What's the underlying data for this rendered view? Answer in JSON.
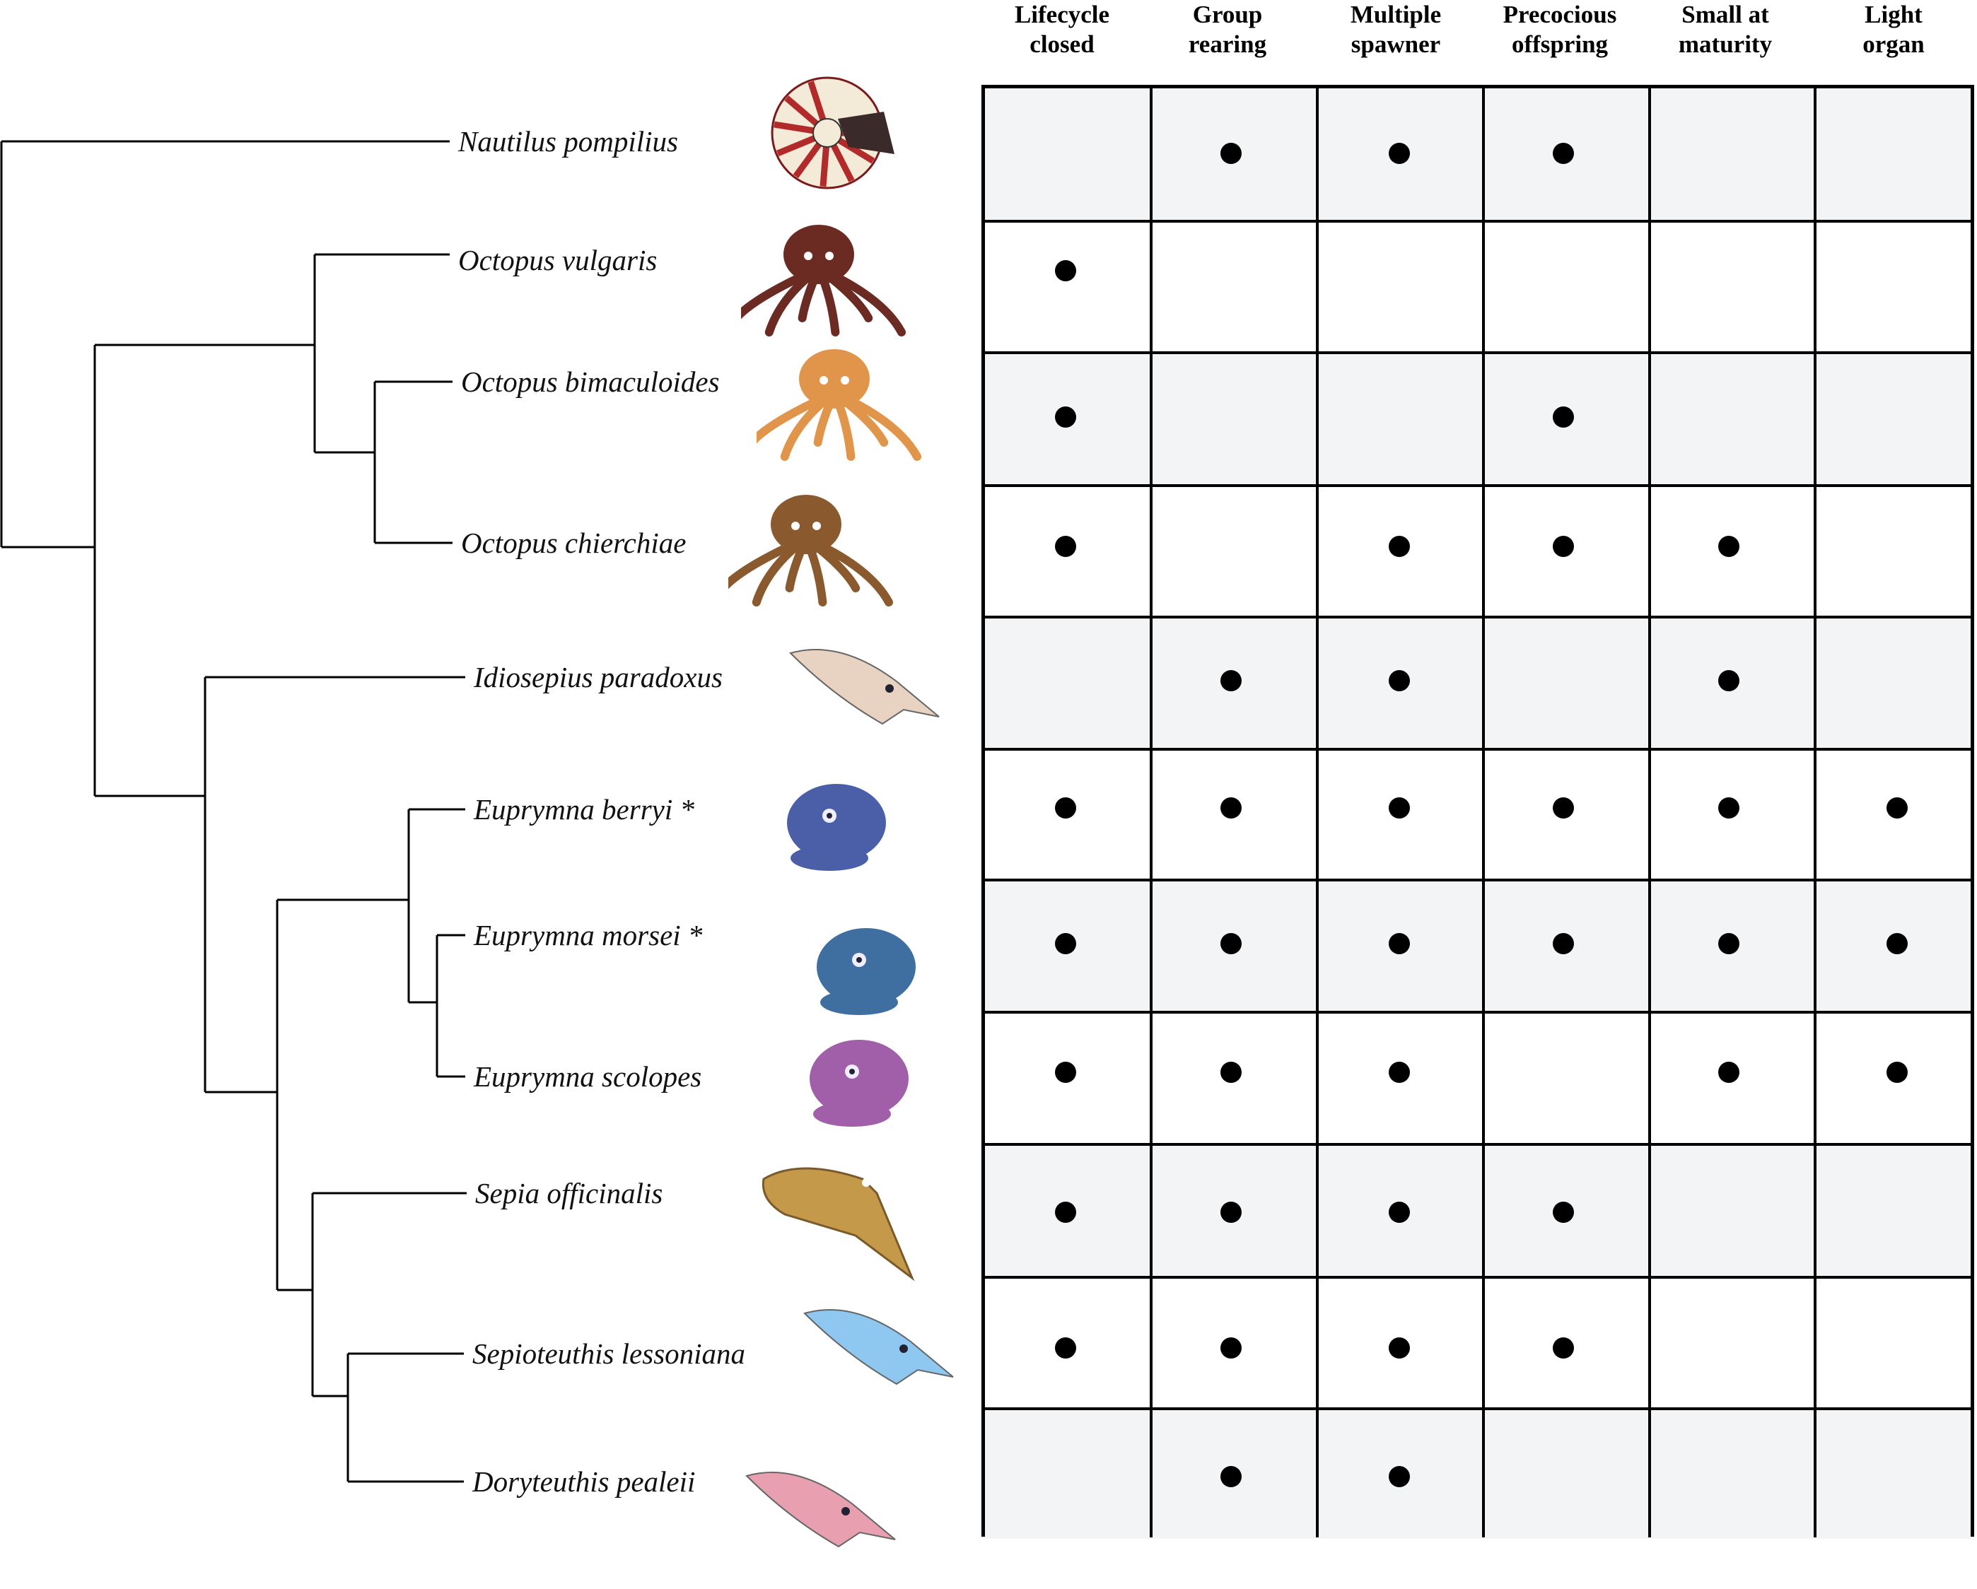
{
  "columns": [
    {
      "line1": "Lifecycle",
      "line2": "closed"
    },
    {
      "line1": "Group",
      "line2": "rearing"
    },
    {
      "line1": "Multiple",
      "line2": "spawner"
    },
    {
      "line1": "Precocious",
      "line2": "offspring"
    },
    {
      "line1": "Small at",
      "line2": "maturity"
    },
    {
      "line1": "Light",
      "line2": "organ"
    }
  ],
  "species": [
    {
      "name": "Nautilus pompilius",
      "icon": "nautilus-icon",
      "traits": [
        0,
        1,
        1,
        1,
        0,
        0
      ]
    },
    {
      "name": "Octopus vulgaris",
      "icon": "octopus-icon",
      "traits": [
        1,
        0,
        0,
        0,
        0,
        0
      ]
    },
    {
      "name": "Octopus bimaculoides",
      "icon": "octopus-icon",
      "traits": [
        1,
        0,
        0,
        1,
        0,
        0
      ]
    },
    {
      "name": "Octopus chierchiae",
      "icon": "octopus-icon",
      "traits": [
        1,
        0,
        1,
        1,
        1,
        0
      ]
    },
    {
      "name": "Idiosepius paradoxus",
      "icon": "squid-icon",
      "traits": [
        0,
        1,
        1,
        0,
        1,
        0
      ]
    },
    {
      "name": "Euprymna berryi *",
      "icon": "bobtail-squid-icon",
      "traits": [
        1,
        1,
        1,
        1,
        1,
        1
      ]
    },
    {
      "name": "Euprymna morsei *",
      "icon": "bobtail-squid-icon",
      "traits": [
        1,
        1,
        1,
        1,
        1,
        1
      ]
    },
    {
      "name": "Euprymna scolopes",
      "icon": "bobtail-squid-icon",
      "traits": [
        1,
        1,
        1,
        0,
        1,
        1
      ]
    },
    {
      "name": "Sepia officinalis",
      "icon": "cuttlefish-icon",
      "traits": [
        1,
        1,
        1,
        1,
        0,
        0
      ]
    },
    {
      "name": "Sepioteuthis lessoniana",
      "icon": "squid-icon",
      "traits": [
        1,
        1,
        1,
        1,
        0,
        0
      ]
    },
    {
      "name": "Doryteuthis pealeii",
      "icon": "squid-icon",
      "traits": [
        0,
        1,
        1,
        0,
        0,
        0
      ]
    }
  ],
  "colors": {
    "shaded_row": "#f3f4f6",
    "white_row": "#ffffff",
    "grid": "#000000",
    "nautilus": "#b22a2a",
    "octopus_vulgaris": "#6b2b22",
    "octopus_bimaculoides": "#e0954a",
    "octopus_chierchiae": "#8a5a2e",
    "idiosepius": "#e8d3c2",
    "euprymna_berryi": "#4a5fa8",
    "euprymna_morsei": "#3f6fa0",
    "euprymna_scolopes": "#a05fa8",
    "sepia": "#c49a4a",
    "sepioteuthis": "#8ec8f0",
    "doryteuthis": "#e8a0b0"
  }
}
